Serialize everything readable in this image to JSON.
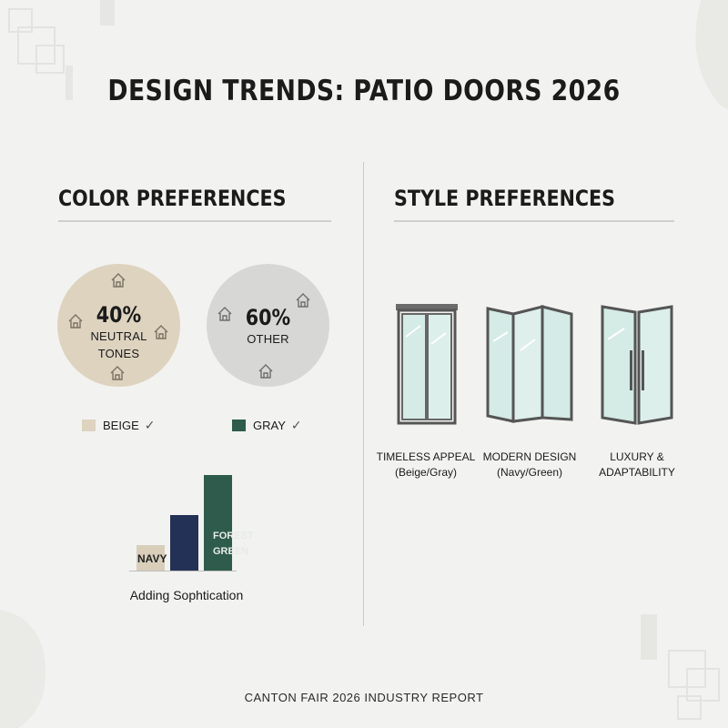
{
  "title": "DESIGN TRENDS: PATIO DOORS 2026",
  "color_section": {
    "heading": "COLOR PREFERENCES",
    "circles": [
      {
        "percent": "40%",
        "label_line1": "NEUTRAL",
        "label_line2": "TONES",
        "color": "#ddd3bf"
      },
      {
        "percent": "60%",
        "label_line1": "OTHER",
        "label_line2": "",
        "color": "#d7d7d6"
      }
    ],
    "legend": [
      {
        "label": "BEIGE",
        "check": "✓",
        "color": "#ddd3bf"
      },
      {
        "label": "GRAY",
        "check": "✓",
        "color": "#2e5b4c"
      }
    ],
    "bars": {
      "items": [
        {
          "label": "NAVY",
          "value": 0.25,
          "color": "#d8ceba"
        },
        {
          "label": "",
          "value": 0.55,
          "color": "#243156"
        },
        {
          "label": "FOREST GREEN",
          "value": 0.95,
          "color": "#2e5b4c"
        }
      ],
      "caption": "Adding Sophtication"
    }
  },
  "style_section": {
    "heading": "STYLE PREFERENCES",
    "doors": [
      {
        "icon": "sliding-door-icon",
        "caption_line1": "TIMELESS APPEAL",
        "caption_line2": "(Beige/Gray)"
      },
      {
        "icon": "folding-door-icon",
        "caption_line1": "MODERN DESIGN",
        "caption_line2": "(Navy/Green)"
      },
      {
        "icon": "french-door-icon",
        "caption_line1": "LUXURY &",
        "caption_line2": "ADAPTABILITY"
      }
    ]
  },
  "footer": "CANTON FAIR 2026 INDUSTRY REPORT"
}
